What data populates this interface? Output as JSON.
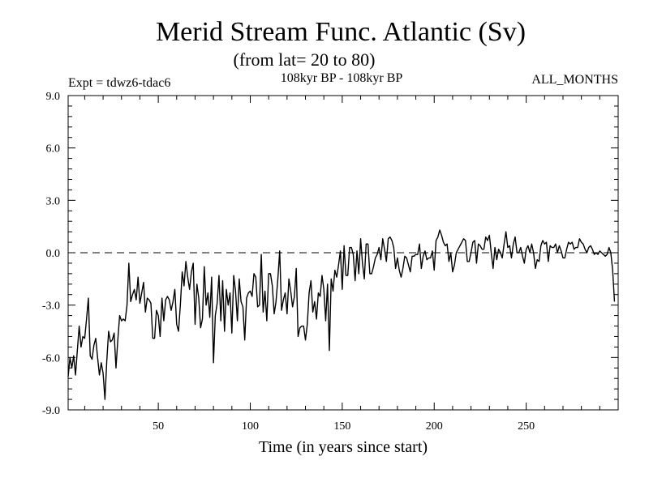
{
  "chart_data": {
    "type": "line",
    "title": "Merid Stream Func. Atlantic (Sv)",
    "subtitle": "(from lat= 20 to 80)",
    "left_label": "Expt = tdwz6-tdac6",
    "center_label": "108kyr BP - 108kyr BP",
    "right_label": "ALL_MONTHS",
    "xlabel": "Time (in years since start)",
    "ylabel": "",
    "xlim": [
      1,
      300
    ],
    "ylim": [
      -9.0,
      9.0
    ],
    "x_ticks": [
      50,
      100,
      150,
      200,
      250
    ],
    "x_tick_labels": [
      "50",
      "100",
      "150",
      "200",
      "250"
    ],
    "y_ticks": [
      -9,
      -6,
      -3,
      0,
      3,
      6,
      9
    ],
    "y_tick_labels": [
      "-9.0",
      "-6.0",
      "-3.0",
      "0.0",
      "3.0",
      "6.0",
      "9.0"
    ],
    "reference_line": 0.0,
    "series": [
      {
        "name": "Merid Stream Func. Atlantic",
        "x_start": 1,
        "x_step": 1,
        "values": [
          -7.1,
          -6.0,
          -6.6,
          -5.9,
          -7.0,
          -5.6,
          -4.2,
          -5.4,
          -4.8,
          -4.9,
          -3.8,
          -2.6,
          -5.9,
          -6.1,
          -5.3,
          -4.9,
          -6.0,
          -7.0,
          -6.3,
          -6.9,
          -8.4,
          -6.2,
          -4.5,
          -5.1,
          -5.0,
          -4.6,
          -6.6,
          -5.0,
          -3.6,
          -3.9,
          -3.8,
          -3.9,
          -3.0,
          -0.6,
          -2.8,
          -2.4,
          -2.1,
          -2.7,
          -1.4,
          -2.9,
          -2.3,
          -1.7,
          -3.4,
          -2.6,
          -2.7,
          -2.9,
          -4.9,
          -4.9,
          -3.3,
          -3.6,
          -4.8,
          -2.6,
          -3.9,
          -2.7,
          -2.5,
          -2.7,
          -3.3,
          -2.8,
          -2.1,
          -4.1,
          -4.5,
          -3.0,
          -1.1,
          -1.9,
          -0.5,
          -1.4,
          -2.1,
          -1.1,
          -0.6,
          -4.1,
          -1.8,
          -2.6,
          -4.3,
          -3.8,
          -0.8,
          -3.0,
          -2.3,
          -3.7,
          -1.4,
          -6.3,
          -3.6,
          -2.9,
          -1.3,
          -3.9,
          -1.6,
          -4.5,
          -2.1,
          -3.0,
          -2.3,
          -4.6,
          -1.3,
          -2.2,
          -3.9,
          -1.5,
          -2.8,
          -3.1,
          -5.0,
          -2.6,
          -2.3,
          -2.2,
          -2.5,
          -1.2,
          -1.4,
          -3.1,
          -3.0,
          -0.1,
          -3.4,
          -2.2,
          -3.9,
          -1.2,
          -1.2,
          -1.9,
          -3.5,
          -2.8,
          -1.5,
          0.1,
          -3.3,
          -2.7,
          -2.3,
          -3.5,
          -1.5,
          -2.2,
          -3.1,
          -2.5,
          -0.9,
          -4.8,
          -4.3,
          -4.2,
          -4.2,
          -5.0,
          -4.1,
          -2.3,
          -1.6,
          -3.4,
          -2.8,
          -3.8,
          -2.3,
          -2.5,
          -1.3,
          -2.1,
          -3.9,
          -1.8,
          -5.6,
          -1.5,
          -2.2,
          -1.0,
          -1.4,
          -0.7,
          0.1,
          -2.1,
          0.4,
          -1.3,
          -1.3,
          0.3,
          0.3,
          -0.1,
          -1.6,
          0.1,
          -1.2,
          0.8,
          -0.6,
          -1.5,
          0.5,
          0.5,
          -1.2,
          -1.2,
          -0.8,
          -0.3,
          -0.1,
          0.3,
          -0.4,
          0.8,
          0.2,
          -0.5,
          0.8,
          0.9,
          0.7,
          0.3,
          -0.9,
          -0.3,
          -1.0,
          -1.4,
          -0.9,
          -0.2,
          -0.3,
          -0.7,
          -1.1,
          -0.2,
          -0.2,
          -0.1,
          -0.1,
          0.5,
          -0.9,
          -0.2,
          0.1,
          -0.4,
          -0.3,
          -0.3,
          0.1,
          -1.0,
          0.7,
          0.9,
          1.3,
          1.0,
          0.6,
          0.4,
          0.5,
          -0.5,
          0.0,
          -1.1,
          -0.7,
          0.0,
          0.2,
          0.4,
          0.6,
          0.8,
          0.7,
          -0.5,
          -0.5,
          0.0,
          0.6,
          0.7,
          -0.6,
          0.5,
          0.4,
          0.2,
          0.2,
          0.9,
          0.7,
          1.0,
          0.0,
          -0.9,
          0.3,
          -0.4,
          0.2,
          0.0,
          -0.3,
          0.5,
          1.2,
          0.3,
          0.4,
          -0.3,
          0.5,
          0.9,
          0.0,
          0.0,
          0.3,
          -0.2,
          -0.6,
          0.2,
          0.4,
          0.0,
          0.5,
          0.0,
          -0.9,
          -0.4,
          -0.5,
          0.4,
          0.7,
          0.5,
          0.6,
          -0.5,
          0.4,
          0.3,
          0.3,
          0.5,
          0.0,
          0.4,
          0.1,
          -0.3,
          -0.3,
          0.2,
          0.6,
          0.5,
          0.6,
          0.2,
          0.3,
          0.3,
          0.8,
          0.6,
          0.5,
          0.2,
          0.0,
          0.3,
          0.4,
          0.2,
          -0.1,
          0.0,
          -0.1,
          0.1,
          0.0,
          -0.1,
          -0.2,
          -0.1,
          0.3,
          0.0,
          -1.0,
          -2.8
        ]
      }
    ],
    "line_color": "#000000",
    "background": "#ffffff"
  }
}
